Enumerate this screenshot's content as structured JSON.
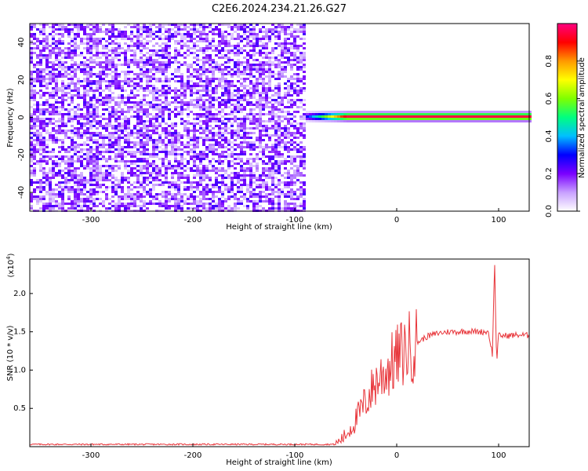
{
  "title": "C2E6.2024.234.21.26.G27",
  "chart_data": [
    {
      "type": "heatmap",
      "xlabel": "Height of straight line (km)",
      "ylabel": "Frequency (Hz)",
      "xlim": [
        -360,
        130
      ],
      "ylim": [
        -50,
        50
      ],
      "xticks": [
        -300,
        -200,
        -100,
        0,
        100
      ],
      "yticks": [
        -40,
        -20,
        0,
        20,
        40
      ],
      "colorbar": {
        "label": "Normalized spectral amplitude",
        "range": [
          0,
          1
        ],
        "ticks": [
          "0.0",
          "0.2",
          "0.4",
          "0.6",
          "0.8"
        ],
        "colors": [
          "#ffffff",
          "#c8a0ff",
          "#7a00ff",
          "#0000ff",
          "#00bfff",
          "#00ff80",
          "#7fff00",
          "#ffff00",
          "#ff9900",
          "#ff0000",
          "#ff0080"
        ]
      },
      "features": {
        "noise_region_x": [
          -360,
          -90
        ],
        "noise_level_range": [
          0.05,
          0.25
        ],
        "signal_start_x": -90,
        "signal_frequency_hz": 1,
        "signal_max_amplitude": 0.95
      }
    },
    {
      "type": "line",
      "xlabel": "Height of straight line (km)",
      "ylabel": "SNR (10 * v/v)",
      "y_scale_label": "(x10",
      "y_scale_exponent": "4",
      "xlim": [
        -360,
        130
      ],
      "ylim": [
        0,
        2.45
      ],
      "xticks": [
        -300,
        -200,
        -100,
        0,
        100
      ],
      "yticks": [
        "0.5",
        "1.0",
        "1.5",
        "2.0"
      ],
      "color": "#e8363b",
      "series": [
        {
          "x": [
            -360,
            -60,
            -50,
            -40,
            -30,
            -20,
            -10,
            0,
            10,
            20,
            30,
            40,
            50,
            60,
            70,
            80,
            90,
            94,
            96,
            98,
            100,
            110,
            120,
            130
          ],
          "y": [
            0.03,
            0.03,
            0.15,
            0.35,
            0.6,
            0.85,
            1.0,
            1.15,
            1.28,
            1.36,
            1.44,
            1.48,
            1.5,
            1.5,
            1.51,
            1.5,
            1.5,
            1.2,
            2.45,
            1.1,
            1.45,
            1.45,
            1.46,
            1.45
          ]
        }
      ]
    }
  ]
}
